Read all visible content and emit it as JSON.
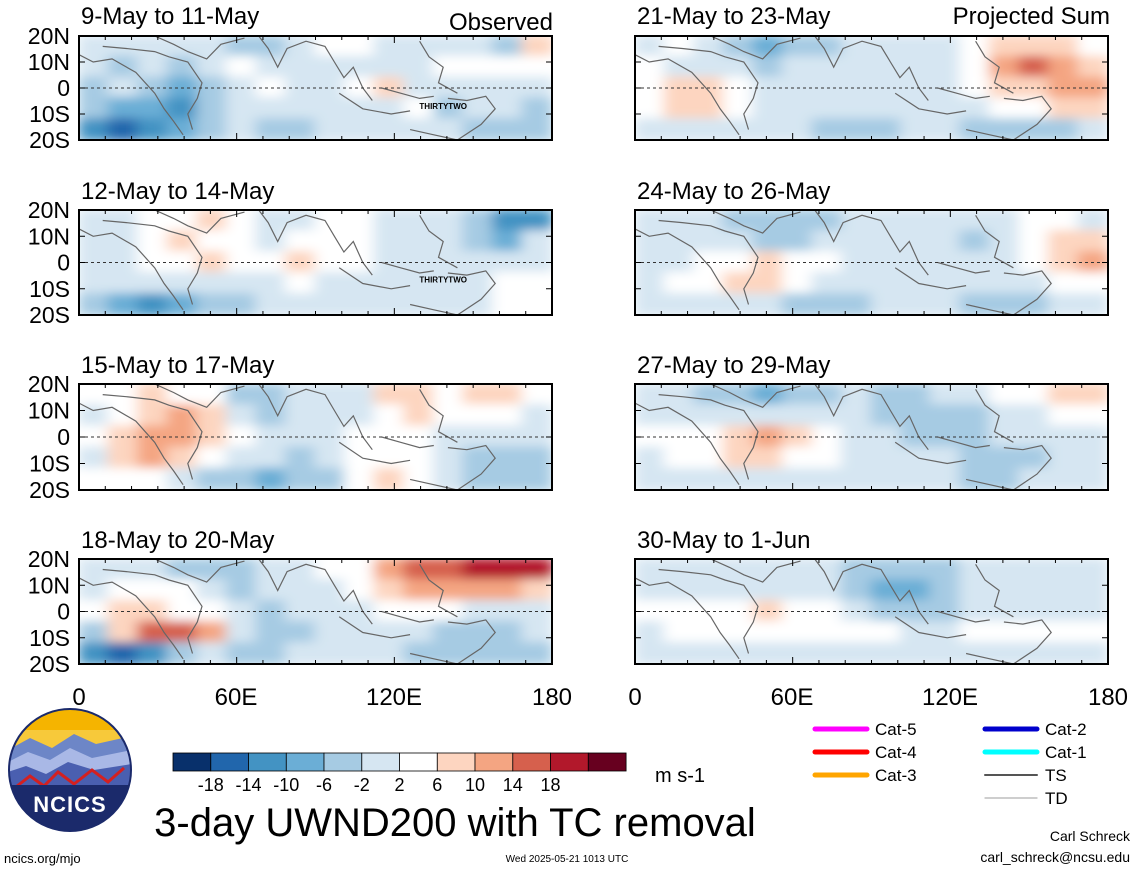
{
  "panel_titles": {
    "left": [
      "9-May to 11-May",
      "12-May to 14-May",
      "15-May to 17-May",
      "18-May to 20-May"
    ],
    "right": [
      "21-May to 23-May",
      "24-May to 26-May",
      "27-May to 29-May",
      "30-May to 1-Jun"
    ]
  },
  "column_labels": {
    "left": "Observed",
    "right": "Projected Sum"
  },
  "lat_labels": [
    "20N",
    "10N",
    "0",
    "10S",
    "20S"
  ],
  "lon_labels": [
    "0",
    "60E",
    "120E",
    "180"
  ],
  "storm_label": "THIRTYTWO",
  "colorbar": {
    "ticks": [
      "-18",
      "-14",
      "-10",
      "-6",
      "-2",
      "2",
      "6",
      "10",
      "14",
      "18"
    ],
    "colors": [
      "#08306b",
      "#2166ac",
      "#4393c3",
      "#6baed6",
      "#a6cbe3",
      "#d6e6f2",
      "#ffffff",
      "#fdd5c0",
      "#f4a582",
      "#d6604d",
      "#b2182b",
      "#67001f"
    ],
    "units": "m s-1"
  },
  "legend": {
    "col1": [
      {
        "label": "Cat-5",
        "color": "#ff00ff"
      },
      {
        "label": "Cat-4",
        "color": "#ff0000"
      },
      {
        "label": "Cat-3",
        "color": "#ffa500"
      }
    ],
    "col2": [
      {
        "label": "Cat-2",
        "color": "#0000cc"
      },
      {
        "label": "Cat-1",
        "color": "#00ffff"
      },
      {
        "label": "TS",
        "color": "#555555"
      },
      {
        "label": "TD",
        "color": "#b0b0b0"
      }
    ]
  },
  "logo_text": "NCICS",
  "main_title": "3-day UWND200 with TC removal",
  "footer": {
    "url": "ncics.org/mjo",
    "timestamp": "Wed 2025-05-21 1013 UTC",
    "author": "Carl Schreck",
    "email": "carl_schreck@ncsu.edu"
  },
  "map_data": [
    [
      [
        0,
        0,
        0,
        -1,
        -2,
        -4,
        -3,
        0,
        2,
        2,
        0,
        0,
        0,
        -2,
        -4,
        6
      ],
      [
        -2,
        -4,
        -2,
        -4,
        0,
        2,
        0,
        0,
        0,
        0,
        -2,
        -2,
        4,
        4,
        2,
        2
      ],
      [
        -3,
        -2,
        -6,
        -8,
        -6,
        0,
        2,
        0,
        0,
        2,
        6,
        -2,
        -2,
        0,
        -2,
        0
      ],
      [
        -6,
        -8,
        -10,
        -14,
        -6,
        -2,
        -2,
        -2,
        0,
        0,
        0,
        2,
        -4,
        -2,
        -2,
        -6
      ],
      [
        -14,
        -18,
        -12,
        -10,
        -4,
        -2,
        -4,
        -3,
        0,
        0,
        -2,
        -2,
        -2,
        -4,
        -6,
        -4
      ]
    ],
    [
      [
        0,
        0,
        2,
        4,
        6,
        3,
        0,
        0,
        2,
        2,
        0,
        0,
        -2,
        -4,
        -14,
        -14
      ],
      [
        -2,
        0,
        2,
        8,
        4,
        2,
        0,
        2,
        4,
        2,
        0,
        0,
        0,
        -4,
        -8,
        -2
      ],
      [
        0,
        0,
        2,
        2,
        6,
        2,
        4,
        6,
        4,
        2,
        0,
        0,
        0,
        0,
        0,
        0
      ],
      [
        -2,
        -2,
        0,
        0,
        0,
        0,
        0,
        2,
        0,
        0,
        0,
        0,
        0,
        0,
        2,
        2
      ],
      [
        -6,
        -10,
        -14,
        -10,
        -6,
        -4,
        -2,
        -2,
        0,
        0,
        0,
        0,
        0,
        0,
        2,
        2
      ]
    ],
    [
      [
        2,
        2,
        6,
        4,
        2,
        -4,
        -6,
        -2,
        0,
        -2,
        6,
        8,
        4,
        6,
        8,
        2
      ],
      [
        0,
        2,
        6,
        10,
        6,
        -2,
        -4,
        -2,
        0,
        0,
        4,
        6,
        2,
        2,
        4,
        0
      ],
      [
        2,
        6,
        10,
        12,
        6,
        2,
        0,
        -2,
        0,
        2,
        2,
        2,
        0,
        -2,
        -2,
        -2
      ],
      [
        0,
        6,
        10,
        8,
        4,
        0,
        -2,
        -4,
        -2,
        2,
        4,
        2,
        -2,
        -4,
        -4,
        -4
      ],
      [
        2,
        4,
        2,
        0,
        -4,
        -6,
        -8,
        -6,
        -4,
        2,
        6,
        2,
        -2,
        -6,
        -6,
        -6
      ]
    ],
    [
      [
        -2,
        0,
        0,
        -4,
        -6,
        -4,
        -2,
        0,
        2,
        4,
        10,
        14,
        16,
        18,
        20,
        20
      ],
      [
        0,
        2,
        4,
        2,
        -2,
        -4,
        -2,
        -2,
        0,
        2,
        6,
        10,
        10,
        10,
        10,
        8
      ],
      [
        2,
        6,
        6,
        4,
        2,
        -2,
        -4,
        -2,
        0,
        0,
        2,
        2,
        2,
        0,
        0,
        0
      ],
      [
        -4,
        6,
        14,
        16,
        10,
        -2,
        -6,
        -4,
        -2,
        -2,
        0,
        -2,
        -4,
        -4,
        -4,
        -2
      ],
      [
        -14,
        -18,
        -14,
        -6,
        -2,
        -4,
        -6,
        -2,
        -2,
        0,
        0,
        -4,
        -6,
        -6,
        -6,
        -4
      ]
    ]
  ],
  "map_data_right": [
    [
      [
        0,
        2,
        0,
        -4,
        -8,
        -6,
        -4,
        -2,
        -2,
        0,
        0,
        2,
        6,
        8,
        6,
        4
      ],
      [
        2,
        0,
        0,
        -2,
        -4,
        -2,
        -2,
        0,
        0,
        0,
        0,
        4,
        10,
        14,
        10,
        6
      ],
      [
        4,
        6,
        6,
        2,
        0,
        0,
        0,
        0,
        0,
        0,
        0,
        2,
        6,
        8,
        10,
        10
      ],
      [
        4,
        6,
        6,
        4,
        0,
        0,
        -2,
        -2,
        -2,
        0,
        0,
        0,
        2,
        4,
        6,
        6
      ],
      [
        -2,
        -2,
        0,
        -2,
        -2,
        -2,
        -4,
        -6,
        -4,
        -2,
        -2,
        -4,
        -6,
        -6,
        -4,
        -2
      ]
    ],
    [
      [
        -2,
        -2,
        -2,
        -4,
        -6,
        -6,
        -4,
        -2,
        -2,
        0,
        0,
        0,
        0,
        2,
        2,
        0
      ],
      [
        -2,
        -2,
        0,
        -2,
        -4,
        -4,
        -2,
        -2,
        0,
        0,
        -2,
        -4,
        0,
        4,
        8,
        8
      ],
      [
        0,
        0,
        2,
        4,
        6,
        4,
        2,
        0,
        0,
        -2,
        -2,
        -2,
        0,
        4,
        8,
        10
      ],
      [
        0,
        2,
        4,
        6,
        6,
        4,
        0,
        0,
        -2,
        -2,
        -2,
        -2,
        -2,
        0,
        2,
        2
      ],
      [
        -2,
        -2,
        -2,
        -2,
        -2,
        -4,
        -4,
        -4,
        -2,
        -2,
        -2,
        -4,
        -4,
        -4,
        -2,
        0
      ]
    ],
    [
      [
        -2,
        -2,
        -4,
        -6,
        -8,
        -6,
        -4,
        -2,
        -4,
        -6,
        -2,
        0,
        2,
        4,
        6,
        6
      ],
      [
        0,
        0,
        0,
        -2,
        -2,
        0,
        -2,
        -2,
        -4,
        -6,
        -6,
        -4,
        -2,
        0,
        2,
        2
      ],
      [
        2,
        2,
        4,
        8,
        10,
        6,
        2,
        -2,
        -2,
        -4,
        -4,
        -4,
        -2,
        -2,
        -2,
        0
      ],
      [
        0,
        2,
        4,
        6,
        6,
        4,
        2,
        -2,
        -2,
        -2,
        -2,
        -4,
        -4,
        -4,
        -2,
        0
      ],
      [
        -2,
        -2,
        -2,
        -2,
        -2,
        -2,
        -2,
        -2,
        -2,
        -2,
        -2,
        -4,
        -4,
        -2,
        -2,
        -2
      ]
    ],
    [
      [
        0,
        0,
        -2,
        -2,
        -2,
        -2,
        -2,
        -4,
        -6,
        -6,
        -4,
        -2,
        -2,
        -2,
        0,
        0
      ],
      [
        0,
        0,
        0,
        -2,
        -2,
        -2,
        -2,
        -4,
        -8,
        -10,
        -6,
        -2,
        -2,
        0,
        -2,
        0
      ],
      [
        2,
        2,
        2,
        4,
        6,
        4,
        2,
        0,
        -4,
        -6,
        -4,
        -2,
        -2,
        -2,
        -2,
        -2
      ],
      [
        0,
        2,
        2,
        2,
        2,
        2,
        2,
        2,
        2,
        0,
        0,
        2,
        2,
        2,
        2,
        2
      ],
      [
        -2,
        -2,
        -2,
        -2,
        -2,
        -2,
        -2,
        -2,
        -2,
        -2,
        -2,
        -2,
        -2,
        -2,
        -2,
        -2
      ]
    ]
  ]
}
